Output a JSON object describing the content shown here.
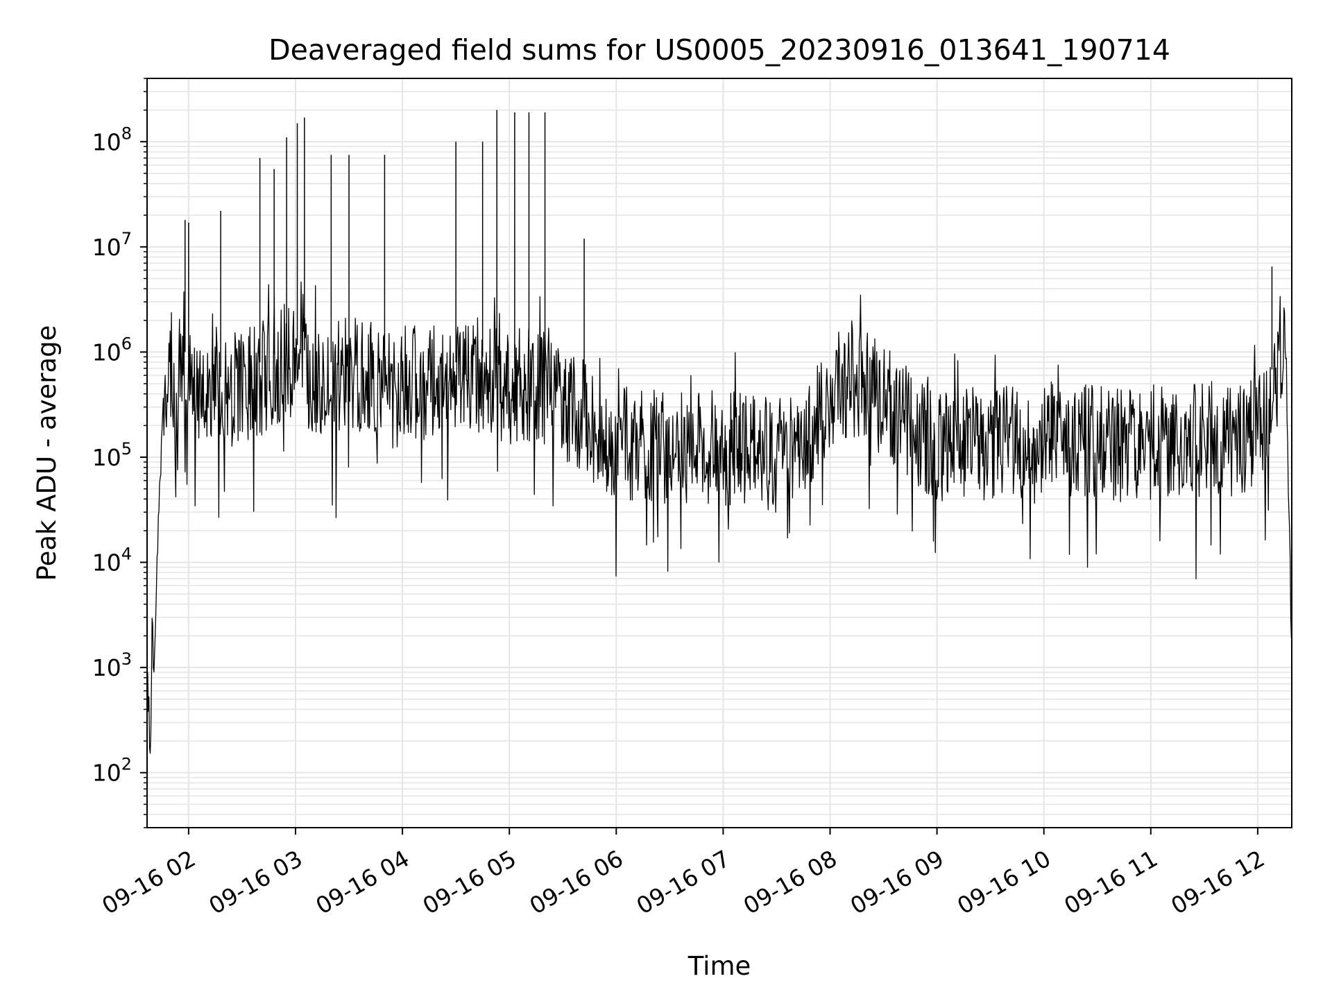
{
  "chart_data": {
    "type": "line",
    "title": "Deaveraged field sums for US0005_20230916_013641_190714",
    "xlabel": "Time",
    "ylabel": "Peak ADU - average",
    "yscale": "log",
    "ylim": [
      30,
      400000000
    ],
    "xlim": [
      "2023-09-16 01:36:41",
      "2023-09-16 12:19:07"
    ],
    "grid": true,
    "line_color": "#000000",
    "grid_color": "#e5e5e5",
    "x_ticks": [
      "2023-09-16 02:00",
      "2023-09-16 03:00",
      "2023-09-16 04:00",
      "2023-09-16 05:00",
      "2023-09-16 06:00",
      "2023-09-16 07:00",
      "2023-09-16 08:00",
      "2023-09-16 09:00",
      "2023-09-16 10:00",
      "2023-09-16 11:00",
      "2023-09-16 12:00"
    ],
    "x_tick_labels": [
      "09-16 02",
      "09-16 03",
      "09-16 04",
      "09-16 05",
      "09-16 06",
      "09-16 07",
      "09-16 08",
      "09-16 09",
      "09-16 10",
      "09-16 11",
      "09-16 12"
    ],
    "y_tick_labels": [
      {
        "base": "10",
        "exp": "2",
        "value": 100
      },
      {
        "base": "10",
        "exp": "3",
        "value": 1000
      },
      {
        "base": "10",
        "exp": "4",
        "value": 10000
      },
      {
        "base": "10",
        "exp": "5",
        "value": 100000
      },
      {
        "base": "10",
        "exp": "6",
        "value": 1000000
      },
      {
        "base": "10",
        "exp": "7",
        "value": 10000000
      },
      {
        "base": "10",
        "exp": "8",
        "value": 100000000
      }
    ],
    "series": [
      {
        "x": [
          "2023-09-16 01:36:41",
          "2023-09-16 01:37:30",
          "2023-09-16 01:38:30",
          "2023-09-16 01:39:30",
          "2023-09-16 01:40:30",
          "2023-09-16 01:41:30",
          "2023-09-16 01:42:00",
          "2023-09-16 01:43:00",
          "2023-09-16 01:44:00",
          "2023-09-16 01:45:00",
          "2023-09-16 01:46:00",
          "2023-09-16 01:47:00",
          "2023-09-16 01:48:00",
          "2023-09-16 01:49:00",
          "2023-09-16 01:50:00",
          "2023-09-16 01:51:00",
          "2023-09-16 01:52:00",
          "2023-09-16 01:53:00",
          "2023-09-16 01:54:00",
          "2023-09-16 01:55:00",
          "2023-09-16 01:56:00",
          "2023-09-16 01:57:00",
          "2023-09-16 01:58:00",
          "2023-09-16 02:00:00",
          "2023-09-16 02:05:00",
          "2023-09-16 02:10:00",
          "2023-09-16 02:15:00",
          "2023-09-16 02:20:00",
          "2023-09-16 02:30:00",
          "2023-09-16 02:40:00",
          "2023-09-16 02:50:00",
          "2023-09-16 03:00:00",
          "2023-09-16 03:10:00",
          "2023-09-16 03:20:00",
          "2023-09-16 03:30:00",
          "2023-09-16 03:40:00",
          "2023-09-16 03:50:00",
          "2023-09-16 04:00:00",
          "2023-09-16 04:15:00",
          "2023-09-16 04:30:00",
          "2023-09-16 04:45:00",
          "2023-09-16 05:00:00",
          "2023-09-16 05:15:00",
          "2023-09-16 05:30:00",
          "2023-09-16 05:45:00",
          "2023-09-16 06:00:00",
          "2023-09-16 06:20:00",
          "2023-09-16 06:40:00",
          "2023-09-16 07:00:00",
          "2023-09-16 07:20:00",
          "2023-09-16 07:40:00",
          "2023-09-16 07:50:00",
          "2023-09-16 08:00:00",
          "2023-09-16 08:15:00",
          "2023-09-16 08:30:00",
          "2023-09-16 08:45:00",
          "2023-09-16 09:00:00",
          "2023-09-16 09:30:00",
          "2023-09-16 10:00:00",
          "2023-09-16 10:30:00",
          "2023-09-16 11:00:00",
          "2023-09-16 11:30:00",
          "2023-09-16 11:50:00",
          "2023-09-16 12:00:00",
          "2023-09-16 12:05:00",
          "2023-09-16 12:10:00",
          "2023-09-16 12:13:00",
          "2023-09-16 12:16:00",
          "2023-09-16 12:19:07"
        ],
        "y": [
          800,
          500,
          120,
          2500,
          900,
          3000,
          12000,
          30000,
          70000,
          150000,
          300000,
          500000,
          700000,
          900000,
          1100000,
          800000,
          300000,
          150000,
          400000,
          1200000,
          1800000,
          1500000,
          1000000,
          900000,
          600000,
          500000,
          550000,
          600000,
          700000,
          800000,
          1000000,
          1200000,
          900000,
          800000,
          900000,
          850000,
          700000,
          800000,
          750000,
          800000,
          900000,
          700000,
          700000,
          600000,
          300000,
          200000,
          180000,
          170000,
          180000,
          160000,
          150000,
          250000,
          600000,
          800000,
          500000,
          300000,
          180000,
          200000,
          220000,
          200000,
          200000,
          220000,
          200000,
          250000,
          450000,
          900000,
          1600000,
          1200000,
          1300
        ]
      }
    ],
    "spikes": [
      {
        "x": "2023-09-16 01:58:00",
        "y": 18000000
      },
      {
        "x": "2023-09-16 02:00:00",
        "y": 17000000
      },
      {
        "x": "2023-09-16 02:18:00",
        "y": 22000000
      },
      {
        "x": "2023-09-16 02:40:00",
        "y": 70000000
      },
      {
        "x": "2023-09-16 02:48:00",
        "y": 55000000
      },
      {
        "x": "2023-09-16 02:55:00",
        "y": 110000000
      },
      {
        "x": "2023-09-16 03:01:00",
        "y": 150000000
      },
      {
        "x": "2023-09-16 03:05:00",
        "y": 170000000
      },
      {
        "x": "2023-09-16 03:20:00",
        "y": 75000000
      },
      {
        "x": "2023-09-16 03:30:00",
        "y": 75000000
      },
      {
        "x": "2023-09-16 03:50:00",
        "y": 75000000
      },
      {
        "x": "2023-09-16 04:30:00",
        "y": 100000000
      },
      {
        "x": "2023-09-16 04:45:00",
        "y": 100000000
      },
      {
        "x": "2023-09-16 04:53:00",
        "y": 200000000
      },
      {
        "x": "2023-09-16 05:03:00",
        "y": 190000000
      },
      {
        "x": "2023-09-16 05:11:00",
        "y": 190000000
      },
      {
        "x": "2023-09-16 05:20:00",
        "y": 190000000
      },
      {
        "x": "2023-09-16 05:42:00",
        "y": 12000000
      },
      {
        "x": "2023-09-16 12:08:00",
        "y": 6500000
      }
    ]
  }
}
